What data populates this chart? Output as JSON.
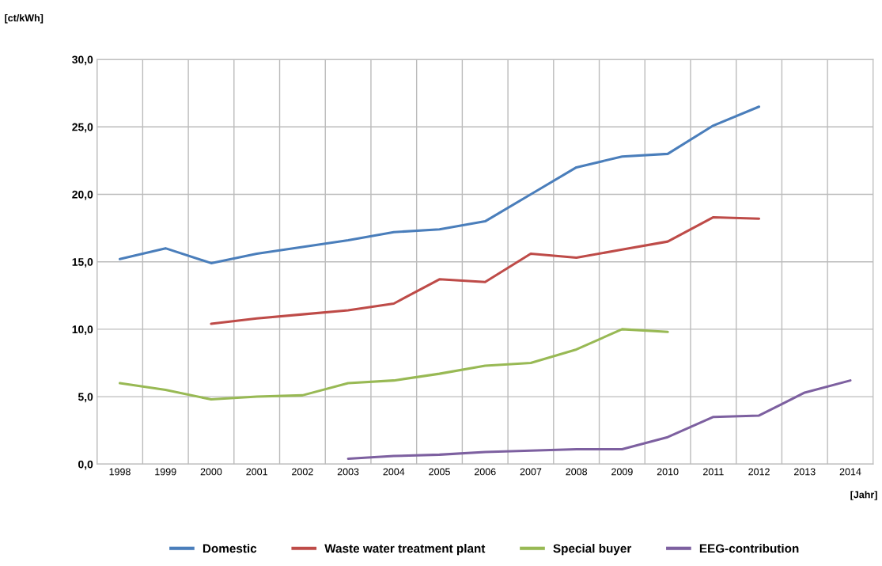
{
  "chart_data": {
    "type": "line",
    "ylabel": "[ct/kWh]",
    "xlabel": "[Jahr]",
    "categories": [
      "1998",
      "1999",
      "2000",
      "2001",
      "2002",
      "2003",
      "2004",
      "2005",
      "2006",
      "2007",
      "2008",
      "2009",
      "2010",
      "2011",
      "2012",
      "2013",
      "2014"
    ],
    "series": [
      {
        "name": "Domestic",
        "color": "#4a7ebb",
        "values": [
          15.2,
          16.0,
          14.9,
          15.6,
          16.1,
          16.6,
          17.2,
          17.4,
          18.0,
          20.0,
          22.0,
          22.8,
          23.0,
          25.1,
          26.5,
          null,
          null
        ]
      },
      {
        "name": "Waste water treatment plant",
        "color": "#be4b48",
        "values": [
          null,
          null,
          10.4,
          10.8,
          11.1,
          11.4,
          11.9,
          13.7,
          13.5,
          15.6,
          15.3,
          15.9,
          16.5,
          18.3,
          18.2,
          null,
          null
        ]
      },
      {
        "name": "Special buyer",
        "color": "#98b954",
        "values": [
          6.0,
          5.5,
          4.8,
          5.0,
          5.1,
          6.0,
          6.2,
          6.7,
          7.3,
          7.5,
          8.5,
          10.0,
          9.8,
          null,
          null,
          null,
          null
        ]
      },
      {
        "name": "EEG-contribution",
        "color": "#7d60a0",
        "values": [
          null,
          null,
          null,
          null,
          null,
          0.4,
          0.6,
          0.7,
          0.9,
          1.0,
          1.1,
          1.1,
          2.0,
          3.5,
          3.6,
          5.3,
          6.2
        ]
      }
    ],
    "ylim": [
      0,
      30
    ],
    "yticks": [
      {
        "value": 0,
        "label": "0,0"
      },
      {
        "value": 5,
        "label": "5,0"
      },
      {
        "value": 10,
        "label": "10,0"
      },
      {
        "value": 15,
        "label": "15,0"
      },
      {
        "value": 20,
        "label": "20,0"
      },
      {
        "value": 25,
        "label": "25,0"
      },
      {
        "value": 30,
        "label": "30,0"
      }
    ],
    "grid": true,
    "legend": "bottom",
    "marker": "none",
    "line_style": "solid"
  }
}
